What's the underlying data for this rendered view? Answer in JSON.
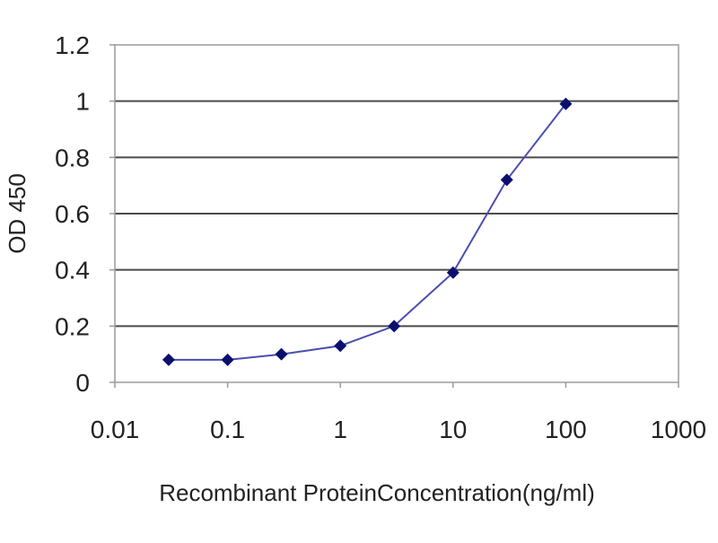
{
  "chart_data": {
    "type": "line",
    "xscale": "log",
    "xlim": [
      0.01,
      1000
    ],
    "ylim": [
      0,
      1.2
    ],
    "xlabel": "Recombinant ProteinConcentration(ng/ml)",
    "ylabel": "OD 450",
    "x_ticks": [
      0.01,
      0.1,
      1,
      10,
      100,
      1000
    ],
    "x_tick_labels": [
      "0.01",
      "0.1",
      "1",
      "10",
      "100",
      "1000"
    ],
    "y_ticks": [
      0,
      0.2,
      0.4,
      0.6,
      0.8,
      1,
      1.2
    ],
    "y_tick_labels": [
      "0",
      "0.2",
      "0.4",
      "0.6",
      "0.8",
      "1",
      "1.2"
    ],
    "grid": "horizontal",
    "colors": {
      "line": "#4a4fb0",
      "marker": "#0a0f6e",
      "grid": "#4a4a4a",
      "frame": "#9a9a9a"
    },
    "series": [
      {
        "x": [
          0.03,
          0.1,
          0.3,
          1,
          3,
          10,
          30,
          100
        ],
        "y": [
          0.08,
          0.08,
          0.1,
          0.13,
          0.2,
          0.39,
          0.72,
          0.99
        ]
      }
    ]
  }
}
